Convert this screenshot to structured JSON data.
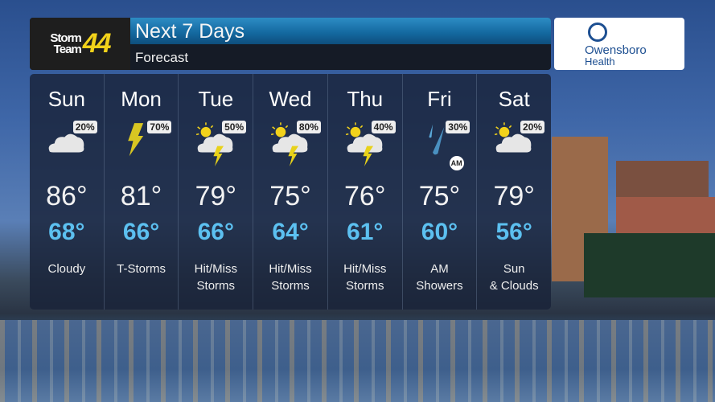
{
  "header": {
    "logo_line1": "Storm",
    "logo_line2": "Team",
    "logo_number": "44",
    "title": "Next 7 Days",
    "subtitle": "Forecast"
  },
  "sponsor": {
    "line1": "Owensboro",
    "line2": "Health"
  },
  "days": [
    {
      "name": "Sun",
      "icon": "cloudy-icon",
      "precip": "20%",
      "high": "86°",
      "low": "68°",
      "desc1": "Cloudy",
      "desc2": ""
    },
    {
      "name": "Mon",
      "icon": "lightning-icon",
      "precip": "70%",
      "high": "81°",
      "low": "66°",
      "desc1": "T-Storms",
      "desc2": ""
    },
    {
      "name": "Tue",
      "icon": "sun-cloud-storm-icon",
      "precip": "50%",
      "high": "79°",
      "low": "66°",
      "desc1": "Hit/Miss",
      "desc2": "Storms"
    },
    {
      "name": "Wed",
      "icon": "sun-cloud-storm-icon",
      "precip": "80%",
      "high": "75°",
      "low": "64°",
      "desc1": "Hit/Miss",
      "desc2": "Storms"
    },
    {
      "name": "Thu",
      "icon": "sun-cloud-storm-icon",
      "precip": "40%",
      "high": "76°",
      "low": "61°",
      "desc1": "Hit/Miss",
      "desc2": "Storms"
    },
    {
      "name": "Fri",
      "icon": "rain-drops-icon",
      "precip": "30%",
      "high": "75°",
      "low": "60°",
      "desc1": "AM",
      "desc2": "Showers",
      "badge": "AM"
    },
    {
      "name": "Sat",
      "icon": "sun-cloud-icon",
      "precip": "20%",
      "high": "79°",
      "low": "56°",
      "desc1": "Sun",
      "desc2": "& Clouds"
    }
  ],
  "colors": {
    "low_temp": "#5cc0f0",
    "title_bar": "#13679e",
    "logo_number": "#f2d21a",
    "sponsor": "#1d4f91"
  }
}
